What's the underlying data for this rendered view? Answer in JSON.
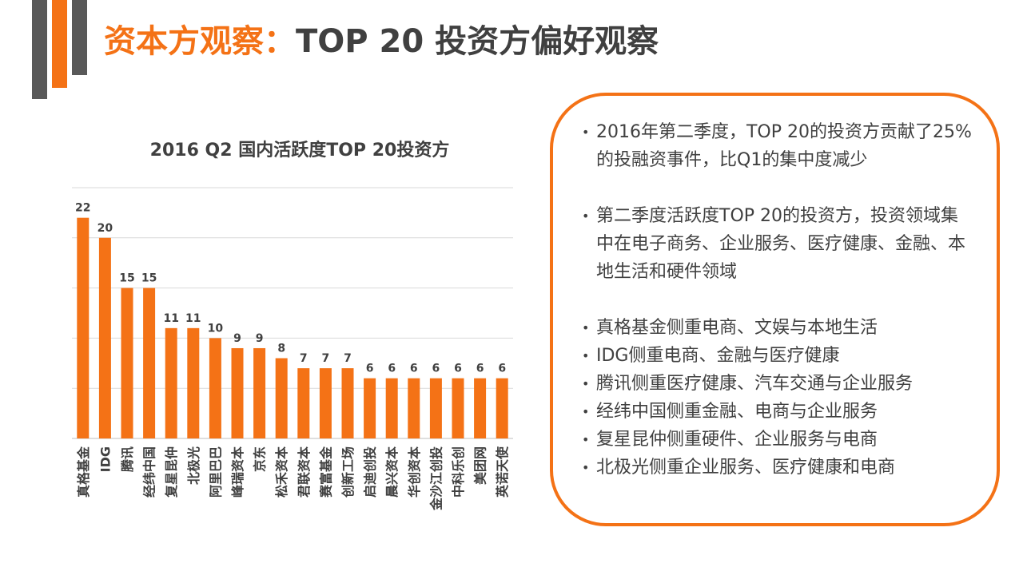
{
  "header": {
    "title_accent": "资本方观察：",
    "title_main": "TOP 20 投资方偏好观察",
    "accent_color": "#f47216"
  },
  "chart_data": {
    "type": "bar",
    "title": "2016 Q2 国内活跃度TOP 20投资方",
    "categories": [
      "真格基金",
      "IDG",
      "腾讯",
      "经纬中国",
      "复星昆仲",
      "北极光",
      "阿里巴巴",
      "峰瑞资本",
      "京东",
      "松禾资本",
      "君联资本",
      "赛富基金",
      "创新工场",
      "启迪创投",
      "晨兴资本",
      "华创资本",
      "金沙江创投",
      "中科乐创",
      "美团网",
      "英诺天使"
    ],
    "values": [
      22,
      20,
      15,
      15,
      11,
      11,
      10,
      9,
      9,
      8,
      7,
      7,
      7,
      6,
      6,
      6,
      6,
      6,
      6,
      6
    ],
    "xlabel": "",
    "ylabel": "",
    "ylim": [
      0,
      25
    ],
    "grid": true,
    "bar_color": "#f47216"
  },
  "notes": [
    "2016年第二季度，TOP 20的投资方贡献了25%的投融资事件，比Q1的集中度减少",
    "第二季度活跃度TOP 20的投资方，投资领域集中在电子商务、企业服务、医疗健康、金融、本地生活和硬件领域",
    "真格基金侧重电商、文娱与本地生活",
    "IDG侧重电商、金融与医疗健康",
    "腾讯侧重医疗健康、汽车交通与企业服务",
    "经纬中国侧重金融、电商与企业服务",
    "复星昆仲侧重硬件、企业服务与电商",
    "北极光侧重企业服务、医疗健康和电商"
  ]
}
